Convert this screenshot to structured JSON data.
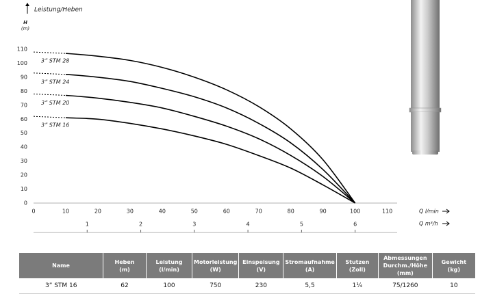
{
  "chart_data": {
    "type": "line",
    "y_label_title": "Leistung/Heben",
    "y_label_symbol": "H",
    "y_label_unit": "(m)",
    "x_label": "Q l/min",
    "x2_label": "Q m³/h",
    "x": [
      0,
      10,
      20,
      30,
      40,
      50,
      60,
      70,
      80,
      90,
      100
    ],
    "series": [
      {
        "name": "3” STM 28",
        "color": "#000000",
        "values": [
          108,
          107,
          105,
          102,
          97,
          90,
          81,
          69,
          53,
          31,
          0
        ]
      },
      {
        "name": "3” STM 24",
        "color": "#000000",
        "values": [
          93,
          92,
          90,
          87,
          82,
          76,
          68,
          57,
          43,
          24,
          0
        ]
      },
      {
        "name": "3” STM 20",
        "color": "#000000",
        "values": [
          78,
          77,
          75,
          72,
          68,
          62,
          55,
          46,
          34,
          19,
          0
        ]
      },
      {
        "name": "3” STM 16",
        "color": "#000000",
        "values": [
          62,
          61,
          60,
          57,
          53,
          48,
          42,
          34,
          25,
          13,
          0
        ]
      }
    ],
    "xlim": [
      0,
      112
    ],
    "xticks": [
      0,
      10,
      20,
      30,
      40,
      50,
      60,
      70,
      80,
      90,
      100,
      110
    ],
    "x2lim": [
      0,
      6.72
    ],
    "x2ticks": [
      1,
      2,
      3,
      4,
      5,
      6
    ],
    "ylim": [
      0,
      110
    ],
    "yticks": [
      0,
      10,
      20,
      30,
      40,
      50,
      60,
      70,
      80,
      90,
      100,
      110
    ]
  },
  "table": {
    "header": [
      "Name",
      "Heben\n(m)",
      "Leistung\n(l/min)",
      "Motorleistung\n(W)",
      "Einspeisung\n(V)",
      "Stromaufnahme\n(A)",
      "Stutzen\n(Zoll)",
      "Abmessungen\nDurchm./Höhe\n(mm)",
      "Gewicht\n(kg)"
    ],
    "rows": [
      [
        "3” STM 16",
        "62",
        "100",
        "750",
        "230",
        "5,5",
        "1¼",
        "75/1260",
        "10"
      ]
    ]
  }
}
